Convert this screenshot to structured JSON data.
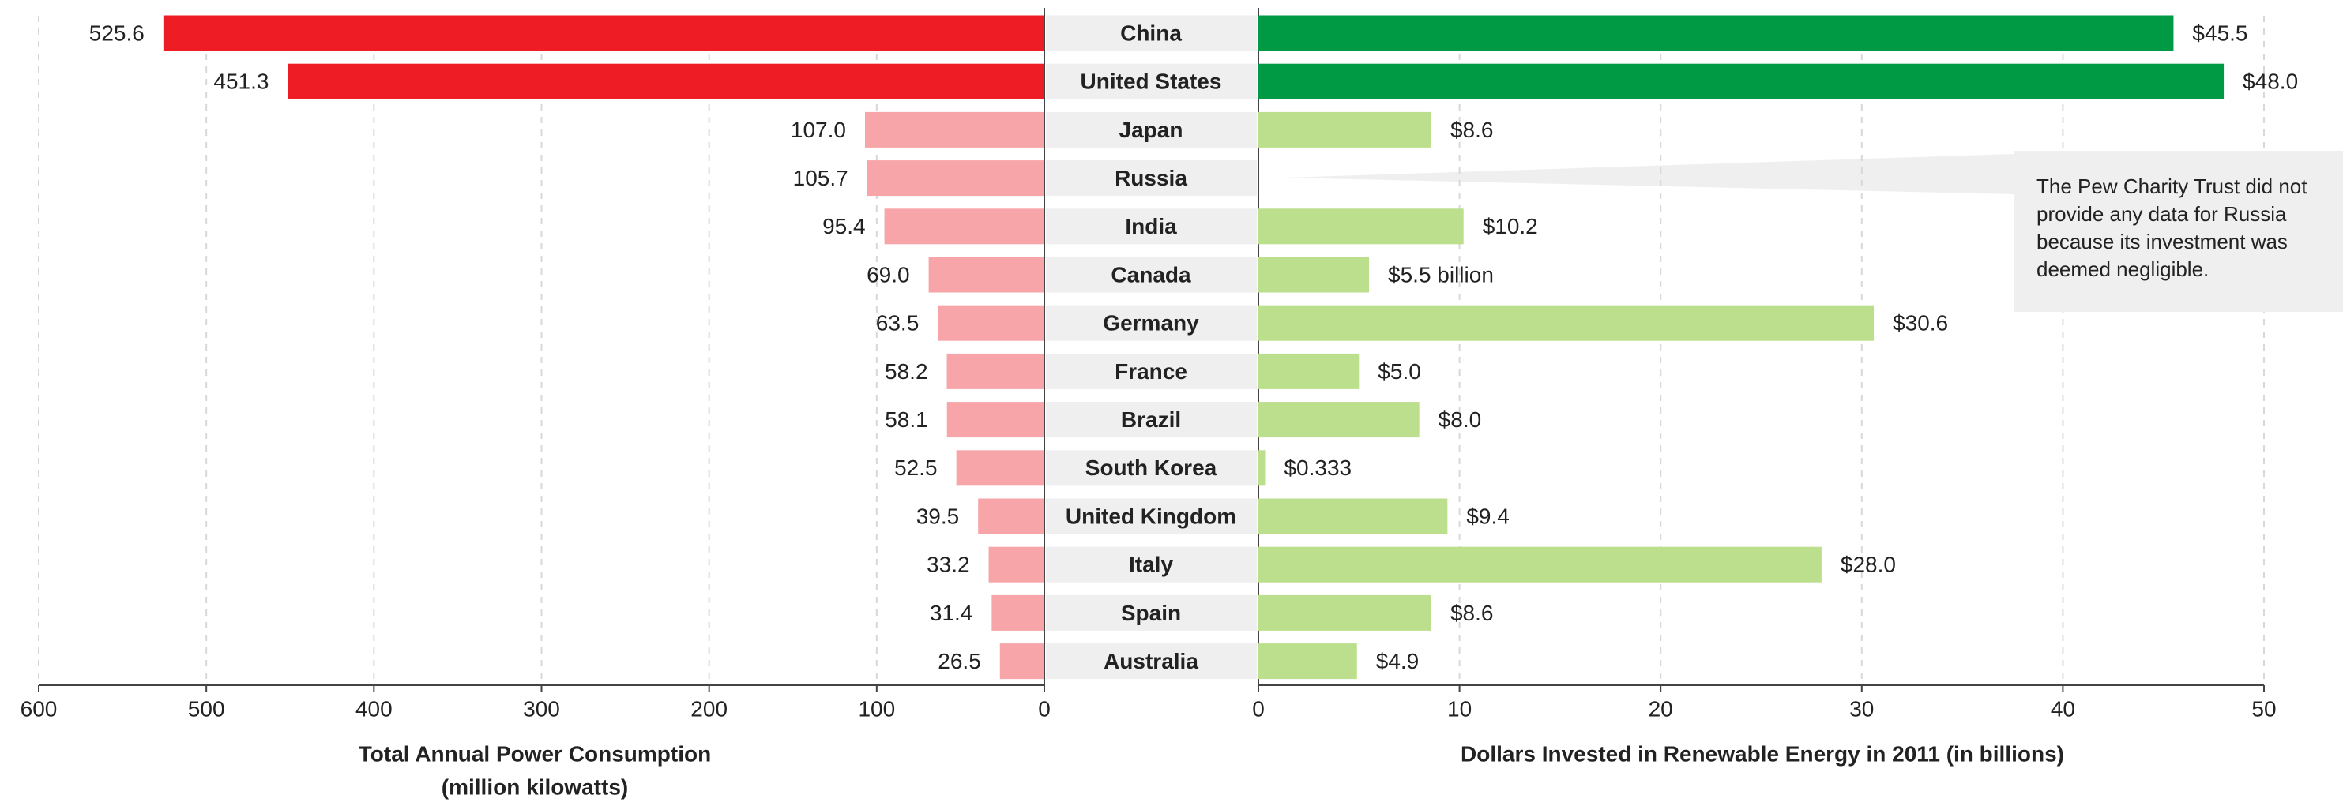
{
  "chart_data": [
    {
      "type": "barh",
      "categories": [
        "China",
        "United States",
        "Japan",
        "Russia",
        "India",
        "Canada",
        "Germany",
        "France",
        "Brazil",
        "South Korea",
        "United Kingdom",
        "Italy",
        "Spain",
        "Australia"
      ],
      "values": [
        525.6,
        451.3,
        107.0,
        105.7,
        95.4,
        69.0,
        63.5,
        58.2,
        58.1,
        52.5,
        39.5,
        33.2,
        31.4,
        26.5
      ],
      "value_labels": [
        "525.6",
        "451.3",
        "107.0",
        "105.7",
        "95.4",
        "69.0",
        "63.5",
        "58.2",
        "58.1",
        "52.5",
        "39.5",
        "33.2",
        "31.4",
        "26.5"
      ],
      "colors": [
        "#ee1c25",
        "#ee1c25",
        "#f7a5a8",
        "#f7a5a8",
        "#f7a5a8",
        "#f7a5a8",
        "#f7a5a8",
        "#f7a5a8",
        "#f7a5a8",
        "#f7a5a8",
        "#f7a5a8",
        "#f7a5a8",
        "#f7a5a8",
        "#f7a5a8"
      ],
      "xlabel": [
        "Total Annual Power Consumption",
        "(million kilowatts)"
      ],
      "xlim": [
        0,
        600
      ],
      "xaxis_inverted": true,
      "xticks": [
        600,
        500,
        400,
        300,
        200,
        100,
        0
      ],
      "grid": true
    },
    {
      "type": "barh",
      "values": [
        45.5,
        48.0,
        8.6,
        null,
        10.2,
        5.5,
        30.6,
        5.0,
        8.0,
        0.333,
        9.4,
        28.0,
        8.6,
        4.9
      ],
      "value_labels": [
        "$45.5",
        "$48.0",
        "$8.6",
        null,
        "$10.2",
        "$5.5 billion",
        "$30.6",
        "$5.0",
        "$8.0",
        "$0.333",
        "$9.4",
        "$28.0",
        "$8.6",
        "$4.9"
      ],
      "colors": [
        "#009a44",
        "#009a44",
        "#bbdf8c",
        "#bbdf8c",
        "#bbdf8c",
        "#bbdf8c",
        "#bbdf8c",
        "#bbdf8c",
        "#bbdf8c",
        "#bbdf8c",
        "#bbdf8c",
        "#bbdf8c",
        "#bbdf8c",
        "#bbdf8c"
      ],
      "xlabel": [
        "Dollars Invested in Renewable Energy in 2011 (in billions)"
      ],
      "xlim": [
        0,
        50
      ],
      "xaxis_inverted": false,
      "xticks": [
        0,
        10,
        20,
        30,
        40,
        50
      ],
      "grid": true,
      "annotation": "The Pew Charity Trust did not provide any data for Russia because its investment was deemed negligible."
    }
  ]
}
